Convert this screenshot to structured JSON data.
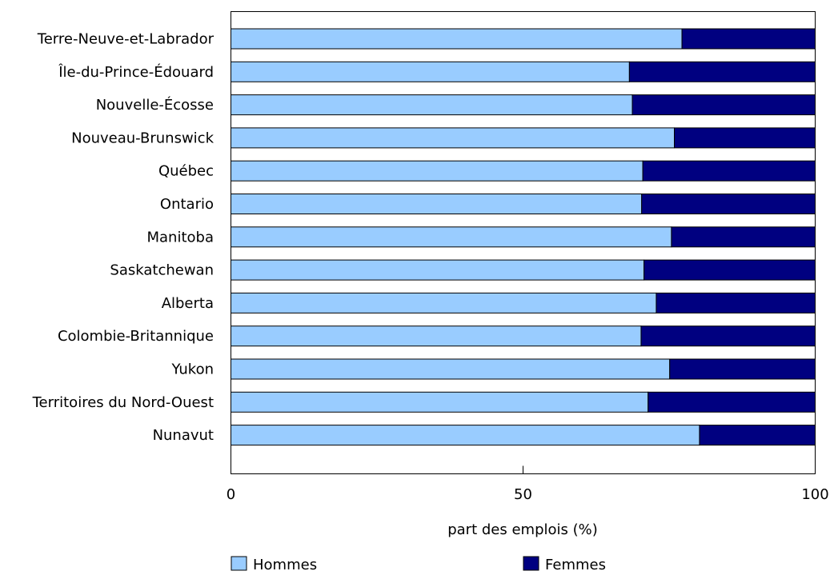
{
  "chart_data": {
    "type": "bar",
    "orientation": "horizontal",
    "stacked": true,
    "title": "",
    "xlabel": "part des emplois (%)",
    "ylabel": "",
    "xlim": [
      0,
      100
    ],
    "xticks": [
      0,
      50,
      100
    ],
    "grid": false,
    "legend_position": "bottom",
    "categories": [
      "Terre-Neuve-et-Labrador",
      "Île-du-Prince-Édouard",
      "Nouvelle-Écosse",
      "Nouveau-Brunswick",
      "Québec",
      "Ontario",
      "Manitoba",
      "Saskatchewan",
      "Alberta",
      "Colombie-Britannique",
      "Yukon",
      "Territoires du Nord-Ouest",
      "Nunavut"
    ],
    "series": [
      {
        "name": "Hommes",
        "color": "#99ccff",
        "values": [
          77.2,
          68.2,
          68.7,
          75.9,
          70.5,
          70.3,
          75.4,
          70.7,
          72.8,
          70.2,
          75.1,
          71.4,
          80.2
        ]
      },
      {
        "name": "Femmes",
        "color": "#000080",
        "values": [
          22.8,
          31.8,
          31.3,
          24.1,
          29.5,
          29.7,
          24.6,
          29.3,
          27.2,
          29.8,
          24.9,
          28.6,
          19.8
        ]
      }
    ]
  }
}
